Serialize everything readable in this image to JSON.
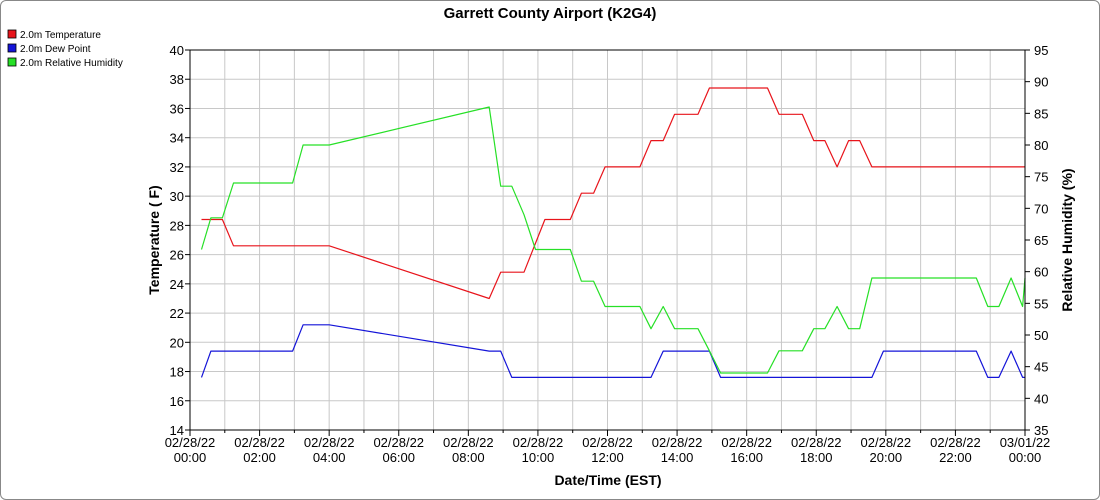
{
  "chart_data": {
    "type": "line",
    "title": "Garrett County Airport (K2G4)",
    "xlabel": "Date/Time (EST)",
    "ylabel_left": "Temperature ( F)",
    "ylabel_right": "Relative Humidity (%)",
    "ylim_left": [
      14,
      40
    ],
    "ylim_right": [
      35,
      95
    ],
    "xlim_hours": [
      0,
      24
    ],
    "grid": true,
    "legend_placement": "top-left",
    "left_ticks": [
      "14",
      "16",
      "18",
      "20",
      "22",
      "24",
      "26",
      "28",
      "30",
      "32",
      "34",
      "36",
      "38",
      "40"
    ],
    "right_ticks": [
      "35",
      "40",
      "45",
      "50",
      "55",
      "60",
      "65",
      "70",
      "75",
      "80",
      "85",
      "90",
      "95"
    ],
    "x_ticks": [
      {
        "hour": 0,
        "date": "02/28/22",
        "time": "00:00"
      },
      {
        "hour": 2,
        "date": "02/28/22",
        "time": "02:00"
      },
      {
        "hour": 4,
        "date": "02/28/22",
        "time": "04:00"
      },
      {
        "hour": 6,
        "date": "02/28/22",
        "time": "06:00"
      },
      {
        "hour": 8,
        "date": "02/28/22",
        "time": "08:00"
      },
      {
        "hour": 10,
        "date": "02/28/22",
        "time": "10:00"
      },
      {
        "hour": 12,
        "date": "02/28/22",
        "time": "12:00"
      },
      {
        "hour": 14,
        "date": "02/28/22",
        "time": "14:00"
      },
      {
        "hour": 16,
        "date": "02/28/22",
        "time": "16:00"
      },
      {
        "hour": 18,
        "date": "02/28/22",
        "time": "18:00"
      },
      {
        "hour": 20,
        "date": "02/28/22",
        "time": "20:00"
      },
      {
        "hour": 22,
        "date": "02/28/22",
        "time": "22:00"
      },
      {
        "hour": 24,
        "date": "03/01/22",
        "time": "00:00"
      }
    ],
    "series": [
      {
        "name": "2.0m Temperature",
        "axis": "left",
        "color": "#e8141b",
        "x": [
          0.33,
          0.93,
          1.25,
          4.0,
          8.6,
          8.93,
          9.6,
          10.2,
          10.93,
          11.25,
          11.6,
          11.93,
          12.93,
          13.25,
          13.6,
          13.93,
          14.6,
          14.93,
          16.6,
          16.93,
          17.6,
          17.93,
          18.25,
          18.6,
          18.93,
          19.25,
          19.6,
          24.0
        ],
        "y": [
          28.4,
          28.4,
          26.6,
          26.6,
          23.0,
          24.8,
          24.8,
          28.4,
          28.4,
          30.2,
          30.2,
          32.0,
          32.0,
          33.8,
          33.8,
          35.6,
          35.6,
          37.4,
          37.4,
          35.6,
          35.6,
          33.8,
          33.8,
          32.0,
          33.8,
          33.8,
          32.0,
          32.0
        ]
      },
      {
        "name": "2.0m Dew Point",
        "axis": "left",
        "color": "#1414d8",
        "x": [
          0.33,
          0.6,
          2.95,
          3.25,
          4.0,
          8.6,
          8.93,
          9.25,
          13.25,
          13.6,
          14.93,
          15.25,
          19.6,
          19.93,
          22.6,
          22.93,
          23.25,
          23.6,
          23.93,
          24.0
        ],
        "y": [
          17.6,
          19.4,
          19.4,
          21.2,
          21.2,
          19.4,
          19.4,
          17.6,
          17.6,
          19.4,
          19.4,
          17.6,
          17.6,
          19.4,
          19.4,
          17.6,
          17.6,
          19.4,
          17.6,
          17.6
        ]
      },
      {
        "name": "2.0m Relative Humidity",
        "axis": "right",
        "color": "#26e026",
        "x": [
          0.33,
          0.6,
          0.93,
          1.25,
          2.95,
          3.25,
          4.0,
          8.6,
          8.93,
          9.25,
          9.6,
          9.93,
          10.93,
          11.25,
          11.6,
          11.93,
          12.93,
          13.25,
          13.6,
          13.93,
          14.6,
          14.93,
          15.25,
          16.6,
          16.93,
          17.6,
          17.93,
          18.25,
          18.6,
          18.93,
          19.25,
          19.6,
          19.93,
          22.6,
          22.93,
          23.25,
          23.6,
          23.93,
          24.0
        ],
        "y": [
          63.5,
          68.5,
          68.5,
          74.0,
          74.0,
          80.0,
          80.0,
          86.0,
          73.5,
          73.5,
          69.0,
          63.5,
          63.5,
          58.5,
          58.5,
          54.5,
          54.5,
          51.0,
          54.5,
          51.0,
          51.0,
          47.5,
          44.0,
          44.0,
          47.5,
          47.5,
          51.0,
          51.0,
          54.5,
          51.0,
          51.0,
          59.0,
          59.0,
          59.0,
          54.5,
          54.5,
          59.0,
          54.5,
          59.0
        ]
      }
    ]
  }
}
